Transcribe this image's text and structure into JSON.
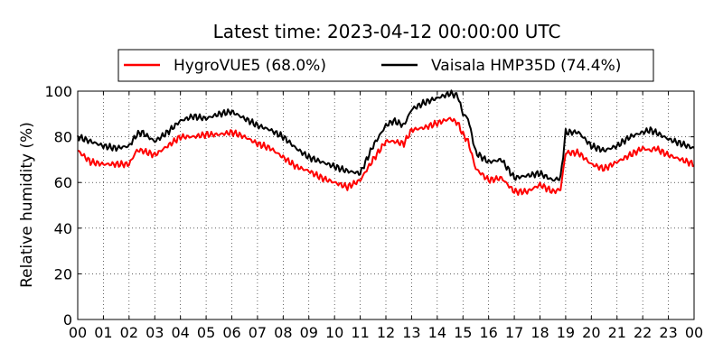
{
  "chart_data": {
    "type": "line",
    "title": "Latest time: 2023-04-12 00:00:00 UTC",
    "xlabel": "",
    "ylabel": "Relative humidity (%)",
    "xlim": [
      0,
      24
    ],
    "ylim": [
      0,
      100
    ],
    "grid": true,
    "legend_placement": "top-center",
    "x_ticks": [
      "00",
      "01",
      "02",
      "03",
      "04",
      "05",
      "06",
      "07",
      "08",
      "09",
      "10",
      "11",
      "12",
      "13",
      "14",
      "15",
      "16",
      "17",
      "18",
      "19",
      "20",
      "21",
      "22",
      "23",
      "00"
    ],
    "y_ticks": [
      "0",
      "20",
      "40",
      "60",
      "80",
      "100"
    ],
    "x": [
      0,
      0.5,
      1,
      1.5,
      2,
      2.3,
      2.5,
      3,
      3.5,
      4,
      4.5,
      5,
      5.5,
      6,
      6.5,
      7,
      7.5,
      8,
      8.5,
      9,
      9.5,
      10,
      10.5,
      11,
      11.5,
      12,
      12.3,
      12.7,
      13,
      13.5,
      14,
      14.5,
      14.8,
      15,
      15.2,
      15.5,
      16,
      16.5,
      17,
      17.5,
      18,
      18.5,
      18.8,
      19,
      19.5,
      20,
      20.5,
      21,
      21.5,
      22,
      22.3,
      22.5,
      23,
      23.5,
      24
    ],
    "series": [
      {
        "name": "HygroVUE5 (68.0%)",
        "color": "#ff0000",
        "values": [
          74,
          69,
          68,
          68,
          68,
          74,
          74,
          72,
          76,
          80,
          80,
          81,
          81,
          82,
          80,
          77,
          75,
          71,
          67,
          65,
          62,
          60,
          58,
          61,
          70,
          78,
          78,
          77,
          83,
          84,
          86,
          88,
          86,
          81,
          78,
          66,
          61,
          62,
          56,
          56,
          59,
          56,
          57,
          73,
          73,
          68,
          66,
          69,
          72,
          75,
          74,
          75,
          72,
          70,
          68
        ]
      },
      {
        "name": "Vaisala HMP35D (74.4%)",
        "color": "#000000",
        "values": [
          80,
          78,
          76,
          75,
          76,
          81,
          82,
          78,
          82,
          87,
          89,
          88,
          90,
          91,
          88,
          85,
          83,
          80,
          75,
          71,
          69,
          67,
          65,
          64,
          76,
          85,
          87,
          85,
          92,
          95,
          97,
          99,
          98,
          90,
          88,
          73,
          69,
          70,
          62,
          63,
          64,
          61,
          62,
          82,
          82,
          76,
          74,
          76,
          80,
          82,
          83,
          82,
          79,
          77,
          75
        ]
      }
    ]
  }
}
